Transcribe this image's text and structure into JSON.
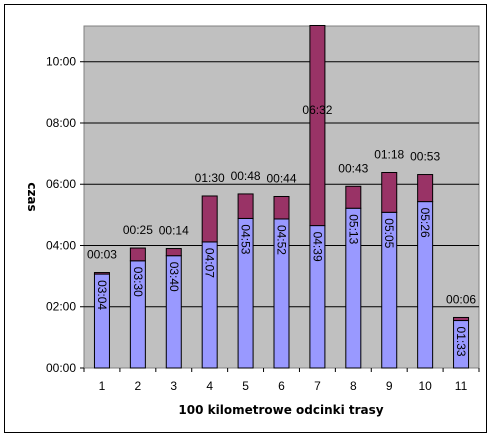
{
  "chart_data": {
    "type": "bar",
    "stacked": true,
    "title": "",
    "xlabel": "100 kilometrowe odcinki trasy",
    "ylabel": "czas",
    "categories": [
      "1",
      "2",
      "3",
      "4",
      "5",
      "6",
      "7",
      "8",
      "9",
      "10",
      "11"
    ],
    "ylim_minutes": [
      0,
      670
    ],
    "yticks": [
      "00:00",
      "02:00",
      "04:00",
      "06:00",
      "08:00",
      "10:00"
    ],
    "ytick_values_minutes": [
      0,
      120,
      240,
      360,
      480,
      600
    ],
    "grid": true,
    "series": [
      {
        "values_minutes": [
          184,
          210,
          220,
          247,
          293,
          292,
          279,
          313,
          305,
          326,
          93
        ],
        "labels": [
          "03:04",
          "03:30",
          "03:40",
          "04:07",
          "04:53",
          "04:52",
          "04:39",
          "05:13",
          "05:05",
          "05:26",
          "01:33"
        ],
        "color": "#9999ff"
      },
      {
        "values_minutes": [
          3,
          25,
          14,
          90,
          48,
          44,
          392,
          43,
          78,
          53,
          6
        ],
        "labels": [
          "00:03",
          "00:25",
          "00:14",
          "01:30",
          "00:48",
          "00:44",
          "06:32",
          "00:43",
          "01:18",
          "00:53",
          "00:06"
        ],
        "color": "#993366"
      }
    ],
    "plot_background": "#c0c0c0"
  }
}
